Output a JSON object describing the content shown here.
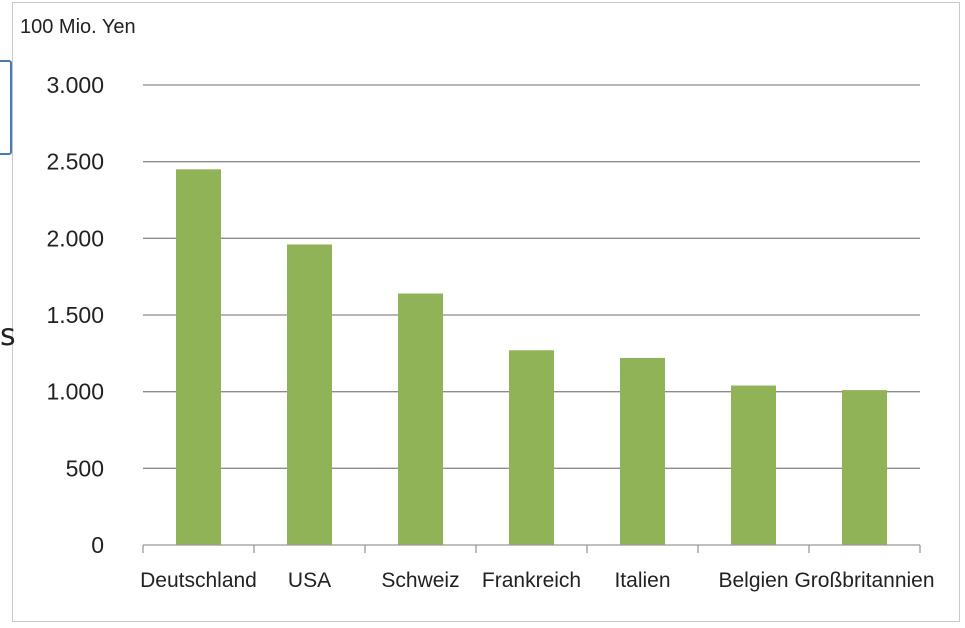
{
  "chart_data": {
    "type": "bar",
    "title": "",
    "unit_label": "100 Mio. Yen",
    "xlabel": "",
    "ylabel": "",
    "categories": [
      "Deutschland",
      "USA",
      "Schweiz",
      "Frankreich",
      "Italien",
      "Belgien",
      "Großbritannien"
    ],
    "values": [
      2450,
      1960,
      1640,
      1270,
      1220,
      1040,
      1010
    ],
    "ylim": [
      0,
      3000
    ],
    "yticks": [
      0,
      500,
      1000,
      1500,
      2000,
      2500,
      3000
    ],
    "ytick_labels": [
      "0",
      "500",
      "1.000",
      "1.500",
      "2.000",
      "2.500",
      "3.000"
    ],
    "grid": true,
    "legend": "none",
    "bar_color": "#8fb356",
    "grid_color": "#8c8c8c"
  },
  "edge": {
    "glyph": "s"
  }
}
